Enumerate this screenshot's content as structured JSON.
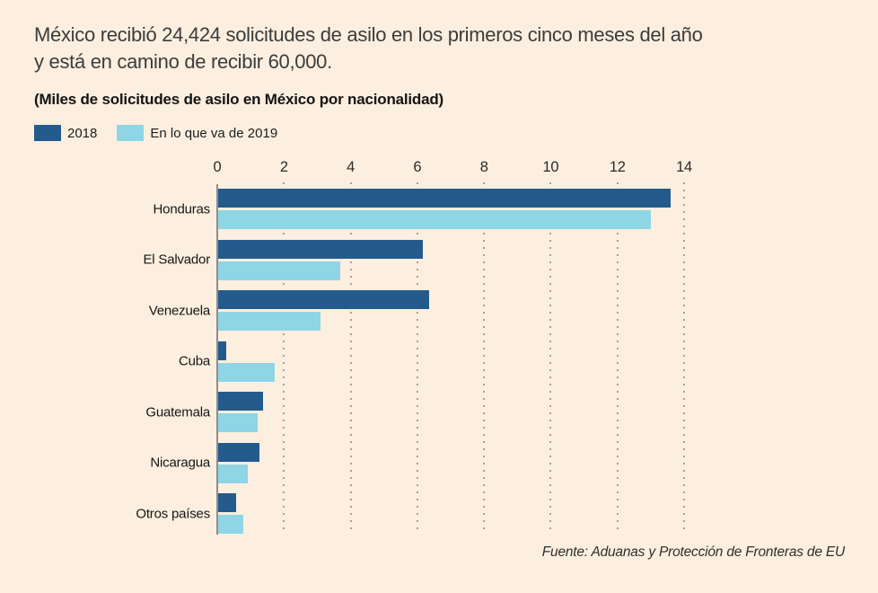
{
  "chart_data": {
    "type": "bar",
    "orientation": "horizontal",
    "title": "México recibió 24,424 solicitudes de asilo en los primeros cinco meses del año y está en camino de recibir 60,000.",
    "title_lines": [
      "México recibió 24,424 solicitudes de asilo en los primeros cinco meses del año",
      "y está en camino de recibir 60,000."
    ],
    "subtitle": "(Miles de solicitudes de asilo en México por nacionalidad)",
    "categories": [
      "Honduras",
      "El Salvador",
      "Venezuela",
      "Cuba",
      "Guatemala",
      "Nicaragua",
      "Otros países"
    ],
    "series": [
      {
        "name": "2018",
        "color": "#245b8c",
        "values": [
          13.7,
          6.2,
          6.4,
          0.25,
          1.35,
          1.25,
          0.55
        ]
      },
      {
        "name": "En lo que va de 2019",
        "color": "#8fd5e5",
        "values": [
          13.1,
          3.7,
          3.1,
          1.7,
          1.2,
          0.9,
          0.75
        ]
      }
    ],
    "xlim": [
      0,
      14
    ],
    "ticks": [
      0,
      2,
      4,
      6,
      8,
      10,
      12,
      14
    ],
    "grid": "dotted-vertical",
    "legend_position": "top-left",
    "source": "Fuente: Aduanas y Protección de Fronteras de EU"
  },
  "colors": {
    "background": "#fcefdf",
    "bar_2018": "#245b8c",
    "bar_2019": "#8fd5e5",
    "title_text": "#3c3c3c",
    "body_text": "#1d1d1d",
    "grid_dots": "#a89f92",
    "axis_line": "#8e8e8e"
  }
}
